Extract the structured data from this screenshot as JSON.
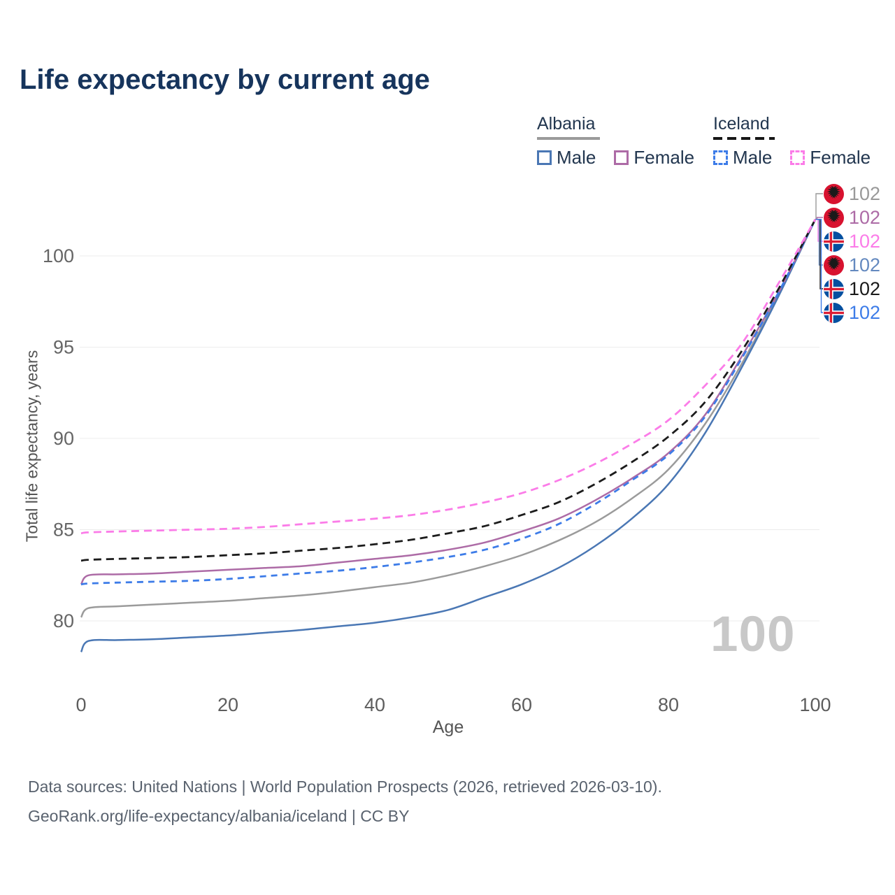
{
  "title": "Life expectancy by current age",
  "legend": {
    "groups": [
      {
        "name": "Albania",
        "style": "solid",
        "items": [
          {
            "label": "Male",
            "color": "#4a77b4"
          },
          {
            "label": "Female",
            "color": "#ad6ba6"
          }
        ]
      },
      {
        "name": "Iceland",
        "style": "dashed",
        "items": [
          {
            "label": "Male",
            "color": "#3d7ce8"
          },
          {
            "label": "Female",
            "color": "#fb7ce8"
          }
        ]
      }
    ]
  },
  "axes": {
    "ylabel": "Total life expectancy, years",
    "xlabel": "Age"
  },
  "watermark": "100",
  "right_labels": [
    {
      "country": "Albania",
      "series": "Albania",
      "value": "102",
      "color": "#999999"
    },
    {
      "country": "Albania",
      "series": "Albania Female",
      "value": "102",
      "color": "#ad6ba6"
    },
    {
      "country": "Iceland",
      "series": "Iceland Female",
      "value": "102",
      "color": "#fb7ce8"
    },
    {
      "country": "Albania",
      "series": "Albania Male",
      "value": "102",
      "color": "#6489bf"
    },
    {
      "country": "Iceland",
      "series": "Iceland",
      "value": "102",
      "color": "#1a1a1a"
    },
    {
      "country": "Iceland",
      "series": "Iceland Male",
      "value": "102",
      "color": "#3d7ce8"
    }
  ],
  "footer": {
    "line1": "Data sources: United Nations | World Population Prospects (2026, retrieved 2026-03-10).",
    "line2": "GeoRank.org/life-expectancy/albania/iceland | CC BY"
  },
  "chart_data": {
    "type": "line",
    "title": "Life expectancy by current age",
    "xlabel": "Age",
    "ylabel": "Total life expectancy, years",
    "xlim": [
      0,
      100
    ],
    "ylim": [
      78,
      103
    ],
    "x_ticks": [
      0,
      20,
      40,
      60,
      80,
      100
    ],
    "y_ticks": [
      80,
      85,
      90,
      95,
      100
    ],
    "grid": "horizontal",
    "legend_position": "top-right",
    "x": [
      0,
      1,
      5,
      10,
      15,
      20,
      25,
      30,
      35,
      40,
      45,
      50,
      55,
      60,
      65,
      70,
      75,
      80,
      85,
      90,
      95,
      100
    ],
    "series": [
      {
        "name": "Albania",
        "country": "Albania",
        "sex": "Both",
        "color": "#9b9b9b",
        "dash": "solid",
        "values": [
          80.2,
          80.7,
          80.8,
          80.9,
          81.0,
          81.1,
          81.25,
          81.4,
          81.6,
          81.85,
          82.1,
          82.5,
          83.0,
          83.6,
          84.4,
          85.4,
          86.7,
          88.3,
          90.8,
          94.1,
          97.9,
          102.0
        ]
      },
      {
        "name": "Albania Male",
        "country": "Albania",
        "sex": "Male",
        "color": "#4a77b4",
        "dash": "solid",
        "values": [
          78.3,
          78.9,
          78.95,
          79.0,
          79.1,
          79.2,
          79.35,
          79.5,
          79.7,
          79.9,
          80.2,
          80.6,
          81.3,
          82.0,
          82.9,
          84.1,
          85.6,
          87.5,
          90.3,
          93.9,
          97.8,
          102.0
        ]
      },
      {
        "name": "Albania Female",
        "country": "Albania",
        "sex": "Female",
        "color": "#ad6ba6",
        "dash": "solid",
        "values": [
          82.0,
          82.5,
          82.55,
          82.6,
          82.7,
          82.8,
          82.9,
          83.0,
          83.2,
          83.4,
          83.6,
          83.9,
          84.3,
          84.9,
          85.6,
          86.6,
          87.8,
          89.2,
          91.3,
          94.5,
          98.0,
          102.0
        ]
      },
      {
        "name": "Iceland Male",
        "country": "Iceland",
        "sex": "Male",
        "color": "#3d7ce8",
        "dash": "dashed",
        "values": [
          82.0,
          82.05,
          82.1,
          82.15,
          82.2,
          82.3,
          82.45,
          82.6,
          82.75,
          82.95,
          83.2,
          83.5,
          83.9,
          84.5,
          85.3,
          86.4,
          87.7,
          89.1,
          91.2,
          94.4,
          98.0,
          102.0
        ]
      },
      {
        "name": "Iceland",
        "country": "Iceland",
        "sex": "Both",
        "color": "#1c1c1c",
        "dash": "dashed",
        "values": [
          83.3,
          83.35,
          83.4,
          83.45,
          83.5,
          83.6,
          83.7,
          83.85,
          84.0,
          84.2,
          84.45,
          84.8,
          85.2,
          85.8,
          86.5,
          87.5,
          88.7,
          90.1,
          92.0,
          94.8,
          98.2,
          102.0
        ]
      },
      {
        "name": "Iceland Female",
        "country": "Iceland",
        "sex": "Female",
        "color": "#fb7ce8",
        "dash": "dashed",
        "values": [
          84.8,
          84.85,
          84.9,
          84.95,
          85.0,
          85.05,
          85.15,
          85.3,
          85.45,
          85.6,
          85.8,
          86.1,
          86.5,
          87.0,
          87.7,
          88.6,
          89.7,
          91.0,
          92.9,
          95.2,
          98.5,
          102.0
        ]
      }
    ]
  }
}
